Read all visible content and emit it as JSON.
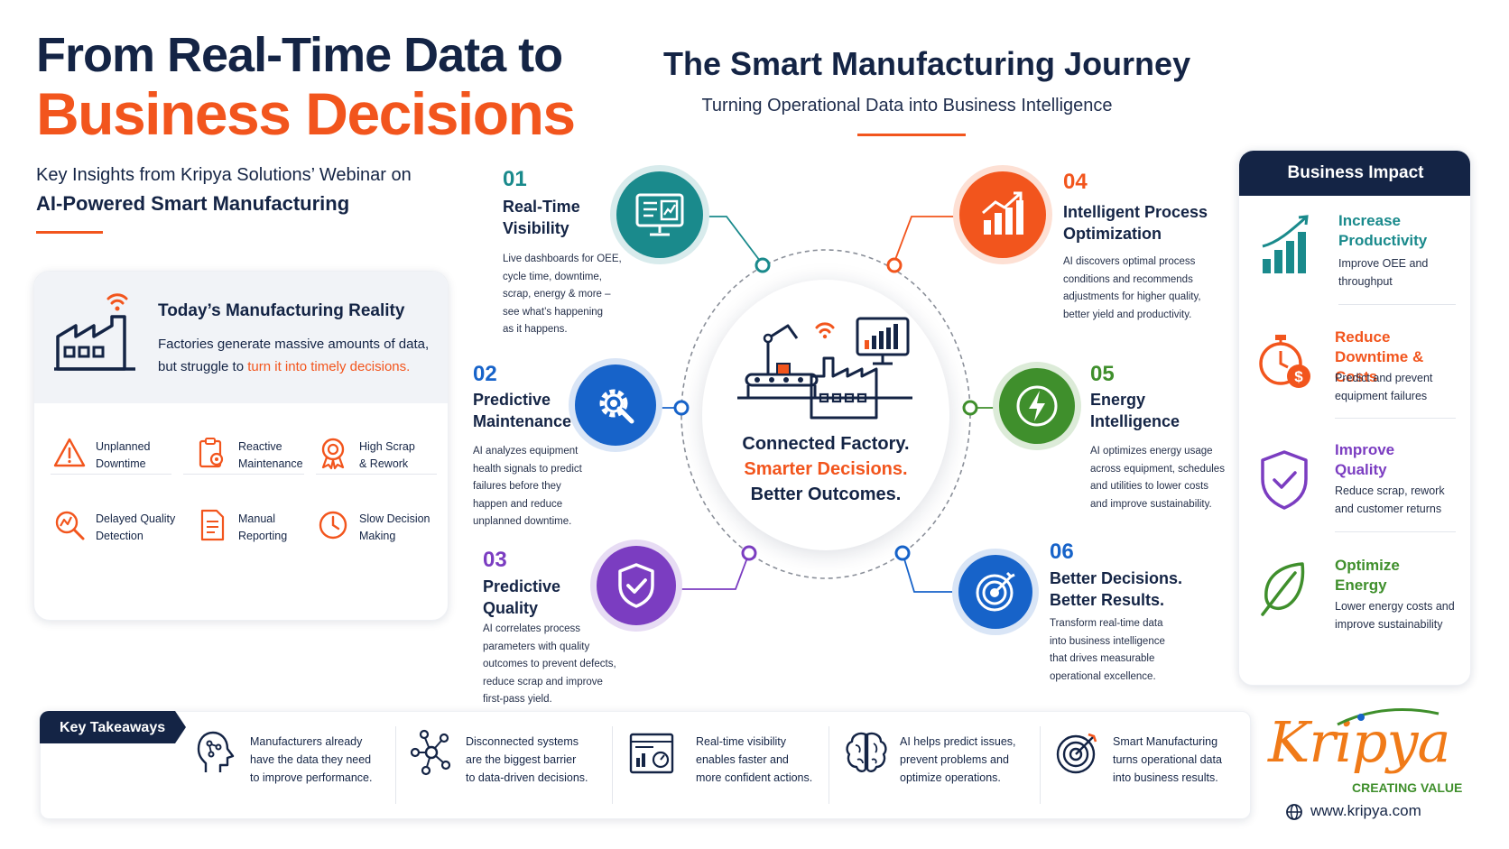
{
  "header": {
    "title_line1": "From Real-Time Data to",
    "title_line2": "Business Decisions",
    "intro_line1": "Key Insights from Kripya Solutions’ Webinar on",
    "intro_line2": "AI-Powered Smart Manufacturing"
  },
  "journey": {
    "title": "The Smart Manufacturing Journey",
    "subtitle": "Turning Operational Data into Business Intelligence"
  },
  "reality": {
    "title": "Today’s Manufacturing Reality",
    "desc_part1": "Factories generate massive amounts of data, but struggle to ",
    "desc_highlight": "turn it into timely decisions.",
    "problems": [
      {
        "line1": "Unplanned",
        "line2": "Downtime",
        "icon": "warning-icon"
      },
      {
        "line1": "Reactive",
        "line2": "Maintenance",
        "icon": "clipboard-gear-icon"
      },
      {
        "line1": "High Scrap",
        "line2": "& Rework",
        "icon": "badge-icon"
      },
      {
        "line1": "Delayed Quality",
        "line2": "Detection",
        "icon": "magnifier-chart-icon"
      },
      {
        "line1": "Manual",
        "line2": "Reporting",
        "icon": "document-icon"
      },
      {
        "line1": "Slow Decision",
        "line2": "Making",
        "icon": "clock-icon"
      }
    ]
  },
  "hub": {
    "line1": "Connected Factory.",
    "line2": "Smarter Decisions.",
    "line3": "Better Outcomes."
  },
  "steps": [
    {
      "num": "01",
      "title1": "Real-Time",
      "title2": "Visibility",
      "desc": [
        "Live dashboards for OEE,",
        "cycle time, downtime,",
        "scrap, energy & more –",
        "see what’s happening",
        "as it happens."
      ],
      "color": "#1a8a8c"
    },
    {
      "num": "02",
      "title1": "Predictive",
      "title2": "Maintenance",
      "desc": [
        "AI analyzes equipment",
        "health signals to predict",
        "failures before they",
        "happen and reduce",
        "unplanned downtime."
      ],
      "color": "#1763c9"
    },
    {
      "num": "03",
      "title1": "Predictive",
      "title2": "Quality",
      "desc": [
        "AI correlates process",
        "parameters with quality",
        "outcomes to prevent defects,",
        "reduce scrap and improve",
        "first-pass yield."
      ],
      "color": "#7b3dc1"
    },
    {
      "num": "04",
      "title1": "Intelligent Process",
      "title2": "Optimization",
      "desc": [
        "AI discovers optimal process",
        "conditions and recommends",
        "adjustments for higher quality,",
        "better yield and productivity."
      ],
      "color": "#f2551d"
    },
    {
      "num": "05",
      "title1": "Energy",
      "title2": "Intelligence",
      "desc": [
        "AI optimizes energy usage",
        "across equipment, schedules",
        "and utilities to lower costs",
        "and improve sustainability."
      ],
      "color": "#3f8f2c"
    },
    {
      "num": "06",
      "title1": "Better Decisions.",
      "title2": "Better Results.",
      "desc": [
        "Transform real-time data",
        "into business intelligence",
        "that drives measurable",
        "operational excellence."
      ],
      "color": "#1763c9"
    }
  ],
  "impact": {
    "title": "Business Impact",
    "items": [
      {
        "title1": "Increase",
        "title2": "Productivity",
        "desc": [
          "Improve OEE and",
          "throughput"
        ],
        "color": "#1a8a8c"
      },
      {
        "title1": "Reduce",
        "title2": "Downtime & Costs",
        "desc": [
          "Predict and prevent",
          "equipment failures"
        ],
        "color": "#f2551d"
      },
      {
        "title1": "Improve",
        "title2": "Quality",
        "desc": [
          "Reduce scrap, rework",
          "and customer returns"
        ],
        "color": "#7b3dc1"
      },
      {
        "title1": "Optimize",
        "title2": "Energy",
        "desc": [
          "Lower energy costs and",
          "improve sustainability"
        ],
        "color": "#3f8f2c"
      }
    ]
  },
  "takeaways": {
    "label": "Key Takeaways",
    "items": [
      {
        "lines": [
          "Manufacturers already",
          "have the data they need",
          "to improve performance."
        ],
        "icon": "head-circuit-icon"
      },
      {
        "lines": [
          "Disconnected systems",
          "are the biggest barrier",
          "to data-driven decisions."
        ],
        "icon": "network-icon"
      },
      {
        "lines": [
          "Real-time visibility",
          "enables faster and",
          "more confident actions."
        ],
        "icon": "dashboard-icon"
      },
      {
        "lines": [
          "AI helps predict issues,",
          "prevent problems and",
          "optimize operations."
        ],
        "icon": "brain-icon"
      },
      {
        "lines": [
          "Smart Manufacturing",
          "turns operational data",
          "into business results."
        ],
        "icon": "target-icon"
      }
    ]
  },
  "logo": {
    "name": "Kripya",
    "tagline": "CREATING VALUE",
    "url": "www.kripya.com"
  },
  "colors": {
    "navy": "#142445",
    "orange": "#f2551d",
    "teal": "#1a8a8c",
    "blue": "#1763c9",
    "purple": "#7b3dc1",
    "green": "#3f8f2c"
  }
}
